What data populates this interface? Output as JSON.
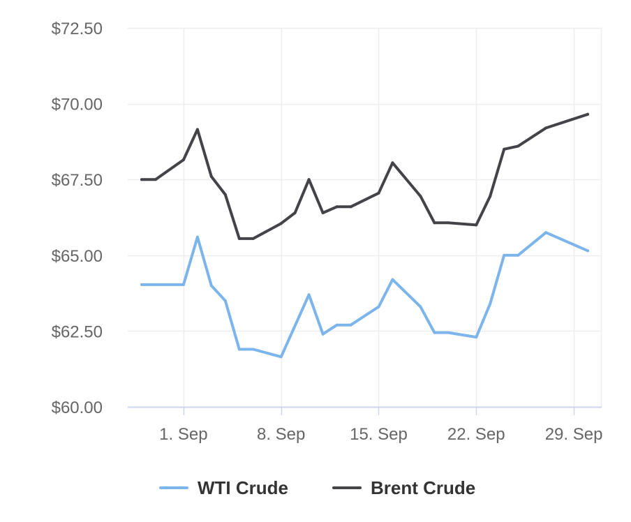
{
  "chart_data": {
    "type": "line",
    "title": "",
    "xlabel": "",
    "ylabel": "",
    "ylim": [
      60.0,
      72.5
    ],
    "y_ticks": [
      {
        "value": 60.0,
        "label": "$60.00"
      },
      {
        "value": 62.5,
        "label": "$62.50"
      },
      {
        "value": 65.0,
        "label": "$65.00"
      },
      {
        "value": 67.5,
        "label": "$67.50"
      },
      {
        "value": 70.0,
        "label": "$70.00"
      },
      {
        "value": 72.5,
        "label": "$72.50"
      }
    ],
    "xlim": [
      "2018-08-28",
      "2018-10-01"
    ],
    "x_ticks": [
      {
        "date": "2018-09-01",
        "label": "1. Sep"
      },
      {
        "date": "2018-09-08",
        "label": "8. Sep"
      },
      {
        "date": "2018-09-15",
        "label": "15. Sep"
      },
      {
        "date": "2018-09-22",
        "label": "22. Sep"
      },
      {
        "date": "2018-09-29",
        "label": "29. Sep"
      }
    ],
    "grid": true,
    "legend_position": "bottom-center",
    "series": [
      {
        "name": "WTI Crude",
        "color": "#7cb5ec",
        "points": [
          {
            "x": "2018-08-29",
            "y": 64.03
          },
          {
            "x": "2018-08-30",
            "y": 64.03
          },
          {
            "x": "2018-09-01",
            "y": 64.03
          },
          {
            "x": "2018-09-02",
            "y": 65.6
          },
          {
            "x": "2018-09-03",
            "y": 64.0
          },
          {
            "x": "2018-09-04",
            "y": 63.5
          },
          {
            "x": "2018-09-05",
            "y": 61.9
          },
          {
            "x": "2018-09-06",
            "y": 61.9
          },
          {
            "x": "2018-09-08",
            "y": 61.65
          },
          {
            "x": "2018-09-10",
            "y": 63.7
          },
          {
            "x": "2018-09-11",
            "y": 62.4
          },
          {
            "x": "2018-09-12",
            "y": 62.7
          },
          {
            "x": "2018-09-13",
            "y": 62.7
          },
          {
            "x": "2018-09-15",
            "y": 63.3
          },
          {
            "x": "2018-09-16",
            "y": 64.2
          },
          {
            "x": "2018-09-18",
            "y": 63.3
          },
          {
            "x": "2018-09-19",
            "y": 62.45
          },
          {
            "x": "2018-09-20",
            "y": 62.45
          },
          {
            "x": "2018-09-22",
            "y": 62.3
          },
          {
            "x": "2018-09-23",
            "y": 63.4
          },
          {
            "x": "2018-09-24",
            "y": 65.0
          },
          {
            "x": "2018-09-25",
            "y": 65.0
          },
          {
            "x": "2018-09-27",
            "y": 65.75
          },
          {
            "x": "2018-09-30",
            "y": 65.15
          }
        ]
      },
      {
        "name": "Brent Crude",
        "color": "#434348",
        "points": [
          {
            "x": "2018-08-29",
            "y": 67.5
          },
          {
            "x": "2018-08-30",
            "y": 67.5
          },
          {
            "x": "2018-09-01",
            "y": 68.15
          },
          {
            "x": "2018-09-02",
            "y": 69.15
          },
          {
            "x": "2018-09-03",
            "y": 67.6
          },
          {
            "x": "2018-09-04",
            "y": 67.0
          },
          {
            "x": "2018-09-05",
            "y": 65.55
          },
          {
            "x": "2018-09-06",
            "y": 65.55
          },
          {
            "x": "2018-09-08",
            "y": 66.05
          },
          {
            "x": "2018-09-09",
            "y": 66.4
          },
          {
            "x": "2018-09-10",
            "y": 67.5
          },
          {
            "x": "2018-09-11",
            "y": 66.4
          },
          {
            "x": "2018-09-12",
            "y": 66.6
          },
          {
            "x": "2018-09-13",
            "y": 66.6
          },
          {
            "x": "2018-09-15",
            "y": 67.05
          },
          {
            "x": "2018-09-16",
            "y": 68.05
          },
          {
            "x": "2018-09-18",
            "y": 66.95
          },
          {
            "x": "2018-09-19",
            "y": 66.07
          },
          {
            "x": "2018-09-20",
            "y": 66.07
          },
          {
            "x": "2018-09-22",
            "y": 66.0
          },
          {
            "x": "2018-09-23",
            "y": 66.95
          },
          {
            "x": "2018-09-24",
            "y": 68.5
          },
          {
            "x": "2018-09-25",
            "y": 68.6
          },
          {
            "x": "2018-09-27",
            "y": 69.2
          },
          {
            "x": "2018-09-30",
            "y": 69.65
          }
        ]
      }
    ]
  }
}
